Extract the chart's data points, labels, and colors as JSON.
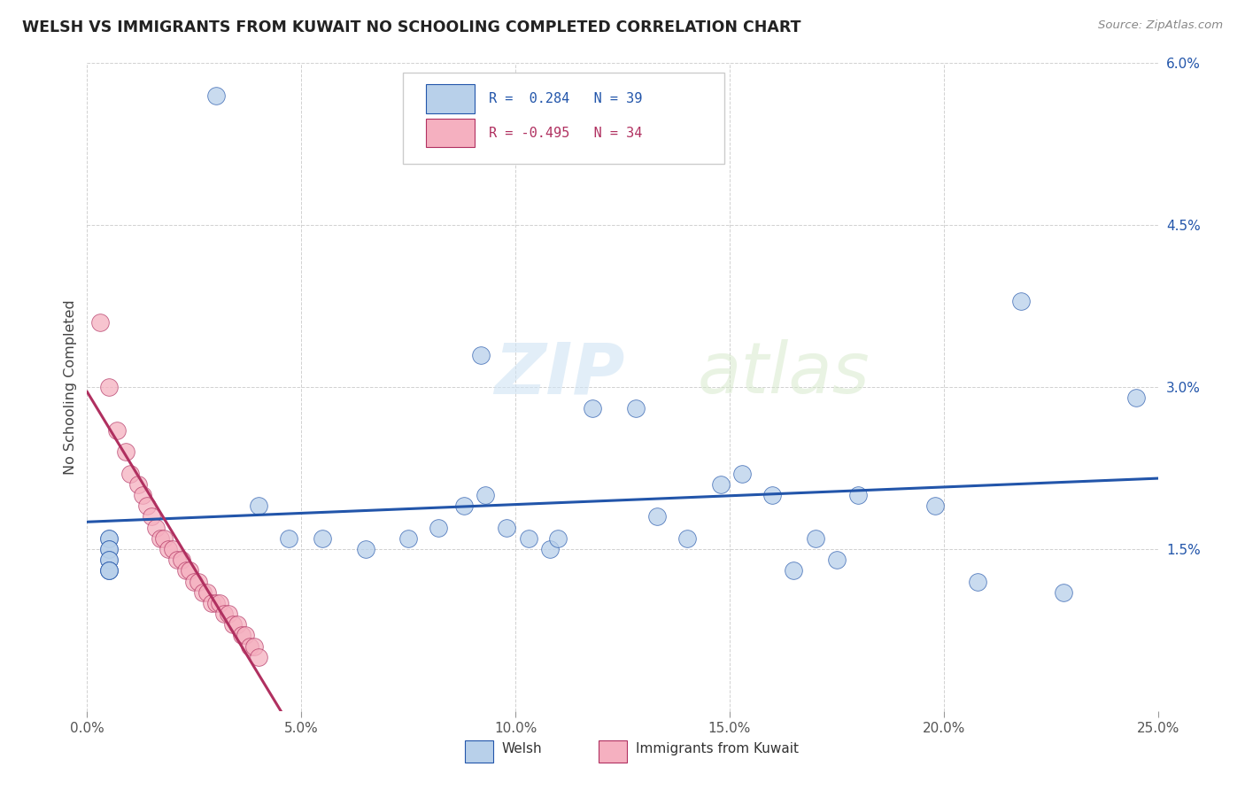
{
  "title": "WELSH VS IMMIGRANTS FROM KUWAIT NO SCHOOLING COMPLETED CORRELATION CHART",
  "source": "Source: ZipAtlas.com",
  "ylabel": "No Schooling Completed",
  "xlim": [
    0,
    0.25
  ],
  "ylim": [
    0,
    0.06
  ],
  "xticks": [
    0.0,
    0.05,
    0.1,
    0.15,
    0.2,
    0.25
  ],
  "yticks": [
    0.0,
    0.015,
    0.03,
    0.045,
    0.06
  ],
  "ytick_labels": [
    "",
    "1.5%",
    "3.0%",
    "4.5%",
    "6.0%"
  ],
  "xtick_labels": [
    "0.0%",
    "5.0%",
    "10.0%",
    "15.0%",
    "20.0%",
    "25.0%"
  ],
  "welsh_R": 0.284,
  "welsh_N": 39,
  "kuwait_R": -0.495,
  "kuwait_N": 34,
  "welsh_color": "#b8d0ea",
  "kuwait_color": "#f5b0c0",
  "welsh_line_color": "#2255aa",
  "kuwait_line_color": "#b03060",
  "welsh_x": [
    0.03,
    0.005,
    0.005,
    0.005,
    0.005,
    0.005,
    0.005,
    0.005,
    0.005,
    0.005,
    0.04,
    0.047,
    0.055,
    0.065,
    0.075,
    0.082,
    0.088,
    0.093,
    0.098,
    0.103,
    0.108,
    0.11,
    0.118,
    0.092,
    0.128,
    0.133,
    0.14,
    0.148,
    0.153,
    0.16,
    0.165,
    0.17,
    0.175,
    0.18,
    0.198,
    0.208,
    0.218,
    0.228,
    0.245
  ],
  "welsh_y": [
    0.057,
    0.016,
    0.016,
    0.015,
    0.015,
    0.014,
    0.014,
    0.013,
    0.013,
    0.013,
    0.019,
    0.016,
    0.016,
    0.015,
    0.016,
    0.017,
    0.019,
    0.02,
    0.017,
    0.016,
    0.015,
    0.016,
    0.028,
    0.033,
    0.028,
    0.018,
    0.016,
    0.021,
    0.022,
    0.02,
    0.013,
    0.016,
    0.014,
    0.02,
    0.019,
    0.012,
    0.038,
    0.011,
    0.029
  ],
  "kuwait_x": [
    0.003,
    0.005,
    0.007,
    0.009,
    0.01,
    0.012,
    0.013,
    0.014,
    0.015,
    0.016,
    0.017,
    0.018,
    0.019,
    0.02,
    0.021,
    0.022,
    0.023,
    0.024,
    0.025,
    0.026,
    0.027,
    0.028,
    0.029,
    0.03,
    0.031,
    0.032,
    0.033,
    0.034,
    0.035,
    0.036,
    0.037,
    0.038,
    0.039,
    0.04
  ],
  "kuwait_y": [
    0.036,
    0.03,
    0.026,
    0.024,
    0.022,
    0.021,
    0.02,
    0.019,
    0.018,
    0.017,
    0.016,
    0.016,
    0.015,
    0.015,
    0.014,
    0.014,
    0.013,
    0.013,
    0.012,
    0.012,
    0.011,
    0.011,
    0.01,
    0.01,
    0.01,
    0.009,
    0.009,
    0.008,
    0.008,
    0.007,
    0.007,
    0.006,
    0.006,
    0.005
  ],
  "watermark_zip": "ZIP",
  "watermark_atlas": "atlas"
}
